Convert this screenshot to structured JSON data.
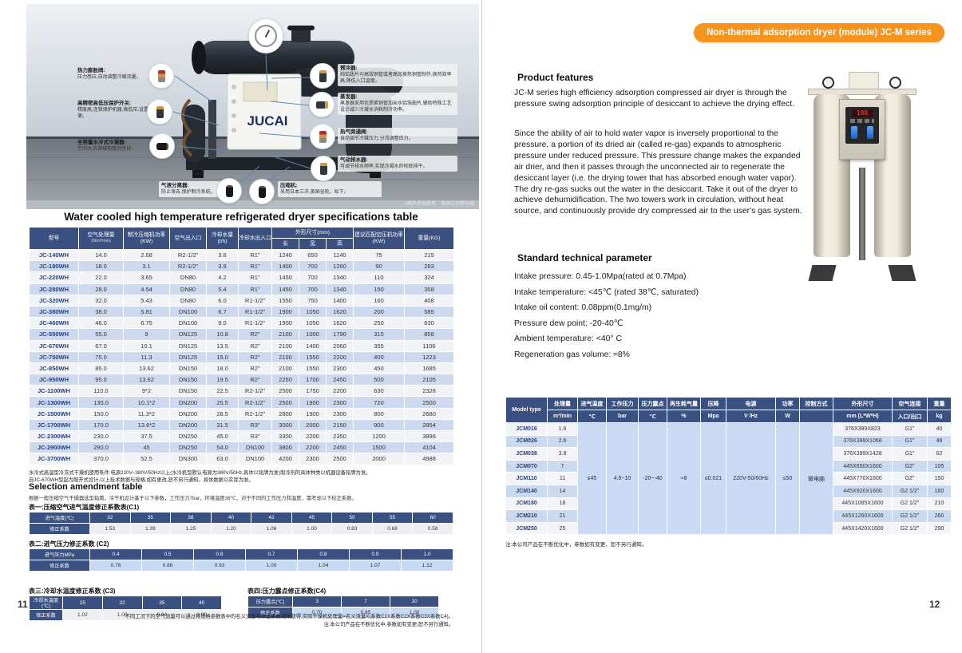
{
  "colors": {
    "accent_orange": "#f7941e",
    "table_header_navy": "#3a5080",
    "row_alt_blue": "#ccd9ee",
    "merged_cell_blue": "#cbdaf2"
  },
  "left_page": {
    "photo": {
      "brand": "JUCAI",
      "caption": "(图片仅供参考，具体以实物为准",
      "callouts_left": [
        {
          "title": "热力膨胀阀:",
          "desc": "压力感应,自动调整冷媒流量。"
        },
        {
          "title": "高精密高低压保护开关:",
          "desc": "精度高,连锁保护机器,高低压,设置方便。"
        },
        {
          "title": "全容量水冷式冷凝器:",
          "desc": "空间大,内部结构散热性好。"
        }
      ],
      "callouts_right": [
        {
          "title": "预冷器:",
          "desc": "纯铝翅片与高效铜管或者高效换热铜管制作,换热效率高,降低入口温度。"
        },
        {
          "title": "蒸发器:",
          "desc": "蒸发器采用优质紫铜管加亲水铝箔翅片,辅助特殊工艺设计减少冷凝水消耗制冷功率。"
        },
        {
          "title": "热气旁通阀:",
          "desc": "自动调节冷媒压力,分流调整压力。"
        },
        {
          "title": "气动排水器:",
          "desc": "可调节排水频率,实现冷凝水的彻底排干。"
        }
      ],
      "callouts_bottom": [
        {
          "title": "气液分离器:",
          "desc": "防止液击,保护制冷系统。"
        },
        {
          "title": "压缩机:",
          "desc": "采用日本三洋,美国谷轮。松下。"
        }
      ]
    },
    "table_title": "Water cooled high temperature refrigerated dryer specifications table",
    "spec_table": {
      "headers": {
        "model": "型号",
        "capacity": "空气处理量",
        "capacity_unit": "(Nm³/min)",
        "comp_power": "制冷压缩机功率(KW)",
        "air_io": "空气出入口",
        "water_flow": "冷却水量(t/h)",
        "water_io": "冷却水出入口",
        "dims": "外形尺寸(mm)",
        "len": "长",
        "wid": "宽",
        "hgt": "高",
        "rec_power": "建议匹配空压机功率(KW)",
        "weight": "重量(KG)"
      },
      "rows": [
        [
          "JC-140WH",
          "14.0",
          "2.68",
          "R2-1/2\"",
          "3.6",
          "R1\"",
          "1240",
          "650",
          "1140",
          "75",
          "215"
        ],
        [
          "JC-180WH",
          "18.0",
          "3.1",
          "R2-1/2\"",
          "3.9",
          "R1\"",
          "1400",
          "700",
          "1260",
          "90",
          "283"
        ],
        [
          "JC-220WH",
          "22.0",
          "3.65",
          "DN80",
          "4.2",
          "R1\"",
          "1450",
          "700",
          "1340",
          "110",
          "324"
        ],
        [
          "JC-280WH",
          "28.0",
          "4.54",
          "DN80",
          "5.4",
          "R1\"",
          "1450",
          "700",
          "1340",
          "150",
          "358"
        ],
        [
          "JC-320WH",
          "32.0",
          "5.43",
          "DN80",
          "6.0",
          "R1-1/2\"",
          "1550",
          "750",
          "1400",
          "160",
          "408"
        ],
        [
          "JC-380WH",
          "38.0",
          "5.81",
          "DN100",
          "6.7",
          "R1-1/2\"",
          "1900",
          "1050",
          "1620",
          "200",
          "585"
        ],
        [
          "JC-460WH",
          "46.0",
          "6.75",
          "DN100",
          "9.0",
          "R1-1/2\"",
          "1900",
          "1050",
          "1620",
          "250",
          "630"
        ],
        [
          "JC-550WH",
          "55.0",
          "9",
          "DN125",
          "10.8",
          "R2\"",
          "2100",
          "1000",
          "1790",
          "315",
          "858"
        ],
        [
          "JC-670WH",
          "67.0",
          "10.1",
          "DN125",
          "13.5",
          "R2\"",
          "2100",
          "1400",
          "2060",
          "355",
          "1106"
        ],
        [
          "JC-750WH",
          "75.0",
          "11.3",
          "DN125",
          "15.0",
          "R2\"",
          "2100",
          "1550",
          "2200",
          "400",
          "1223"
        ],
        [
          "JC-850WH",
          "85.0",
          "13.62",
          "DN150",
          "18.0",
          "R2\"",
          "2100",
          "1550",
          "2300",
          "450",
          "1685"
        ],
        [
          "JC-950WH",
          "95.0",
          "13.62",
          "DN150",
          "19.5",
          "R2\"",
          "2250",
          "1700",
          "2450",
          "500",
          "2105"
        ],
        [
          "JC-1100WH",
          "110.0",
          "9*2",
          "DN150",
          "22.5",
          "R2-1/2\"",
          "2500",
          "1750",
          "2200",
          "630",
          "2326"
        ],
        [
          "JC-1300WH",
          "130.0",
          "10.1*2",
          "DN200",
          "25.5",
          "R2-1/2\"",
          "2500",
          "1900",
          "2300",
          "720",
          "2500"
        ],
        [
          "JC-1500WH",
          "150.0",
          "11.3*2",
          "DN200",
          "28.5",
          "R2-1/2\"",
          "2800",
          "1900",
          "2300",
          "800",
          "2680"
        ],
        [
          "JC-1700WH",
          "170.0",
          "13.6*2",
          "DN200",
          "31.5",
          "R3\"",
          "3000",
          "2000",
          "2150",
          "900",
          "2854"
        ],
        [
          "JC-2300WH",
          "230.0",
          "37.5",
          "DN250",
          "45.0",
          "R3\"",
          "3300",
          "2200",
          "2350",
          "1200",
          "3896"
        ],
        [
          "JC-2900WH",
          "290.0",
          "45",
          "DN250",
          "54.0",
          "DN100",
          "3800",
          "2200",
          "2450",
          "1500",
          "4104"
        ],
        [
          "JC-3700WH",
          "370.0",
          "52.5",
          "DN300",
          "63.0",
          "DN100",
          "4200",
          "2300",
          "2500",
          "2000",
          "4988"
        ]
      ]
    },
    "notes": [
      "水冷式高温型冷冻式干燥机使用条件:电源220V~380V/50Hz以上(水冷机型默认电源为380V/50Hz,具体以铭牌为准)制冷剂的具体种类以机器设备铭牌为准。",
      "自JC-670WH型起为敞开式设计,以上技术数据与规格,如有更改,恕不另行通知。具体数据以实际为准。"
    ],
    "amendment": {
      "heading": "Selection amendment table",
      "intro": "根据一般压缩空气干燥器选型指南，冷干机设计基于以下参数，工作压力7bar，环境温度38℃，对于不同的工作压力和温度，需考虑以下校正系数。",
      "c1": {
        "label": "表一:压缩空气进气温度修正系数表(C1)",
        "row1_label": "进气温度(℃)",
        "row2_label": "修正系数",
        "values": [
          "32",
          "35",
          "38",
          "40",
          "42",
          "45",
          "50",
          "55",
          "60"
        ],
        "coeffs": [
          "1.53",
          "1.39",
          "1.25",
          "1.20",
          "1.06",
          "1.00",
          "0.83",
          "0.68",
          "0.58"
        ]
      },
      "c2": {
        "label": "表二:进气压力修正系数 (C2)",
        "row1_label": "进气压力MPa",
        "row2_label": "修正系数",
        "values": [
          "0.4",
          "0.5",
          "0.6",
          "0.7",
          "0.8",
          "0.9",
          "1.0"
        ],
        "coeffs": [
          "0.76",
          "0.86",
          "0.93",
          "1.00",
          "1.04",
          "1.07",
          "1.12"
        ]
      },
      "c3": {
        "label": "表三:冷却水温度修正系数 (C3)",
        "row1_label": "冷却水温度(℃)",
        "row2_label": "修正系数",
        "values": [
          "25",
          "32",
          "35",
          "40"
        ],
        "coeffs": [
          "1.02",
          "1.00",
          "0.94",
          "0.90"
        ]
      },
      "c4": {
        "label": "表四:压力露点修正系数(C4)",
        "row1_label": "压力露点(℃)",
        "row2_label": "修正系数",
        "values": [
          "3",
          "7",
          "10"
        ],
        "coeffs": [
          "0.70",
          "0.85",
          "1.00"
        ]
      }
    },
    "bottom_notes": [
      "不同工况下的空气流量可以通过将规格参数表中的名义流量与修正系数相乘获得,实际干燥机处理量=名义流量X(系数C1X系数C2X系数C3X系数C4)。",
      "注:本公司产品在不断优化中,参数如有变更,恕不另行通知。"
    ],
    "page_number": "11"
  },
  "right_page": {
    "banner": "Non-thermal adsorption dryer (module) JC-M series",
    "features": {
      "heading": "Product features",
      "p1": "JC-M series high efficiency adsorption compressed air dryer is through the pressure swing adsorption principle of desiccant to achieve the drying effect.",
      "p2": "Since the ability of air to hold water vapor is inversely proportional to the pressure, a portion of its dried air (called re-gas) expands to atmospheric pressure under reduced pressure. This pressure change makes the expanded air drier, and then it passes through the unconnected air to regenerate the desiccant layer (i.e. the drying tower that has absorbed enough water vapor). The dry re-gas sucks out the water in the desiccant. Take it out of the dryer to achieve dehumidification. The two towers work in circulation, without heat source, and continuously provide dry compressed air to the user's gas system."
    },
    "params": {
      "heading": "Standard technical parameter",
      "items": [
        "Intake pressure: 0.45-1.0Mpa(rated at 0.7Mpa)",
        "Intake temperature: <45℃ (rated 38℃, saturated)",
        "Intake oil content: 0.08ppm(0.1mg/m)",
        "Pressure dew point: -20-40℃",
        "Ambient temperature: <40°  C",
        "Regeneration gas volume: ≈8%"
      ]
    },
    "jcm_table": {
      "headers_row1": [
        "Model type",
        "处理量",
        "进气温度",
        "工作压力",
        "压力露点",
        "再生耗气量",
        "压降",
        "电源",
        "功率",
        "控制方式",
        "外形尺寸",
        "空气连接",
        "重量"
      ],
      "headers_row2": [
        "m³/min",
        "℃",
        "bar",
        "℃",
        "%",
        "Mpa",
        "V /Hz",
        "W",
        "",
        "mm (L*W*H)",
        "入口/出口",
        "kg"
      ],
      "merged": [
        "≤45",
        "4.5~10",
        "-20~-40",
        "≈8",
        "≤0.021",
        "220V-50/60Hz",
        "≤50",
        "微电脑"
      ],
      "rows": [
        [
          "JCM016",
          "1.6",
          "376X399X823",
          "G1\"",
          "40"
        ],
        [
          "JCM026",
          "2.6",
          "376X399X1068",
          "G1\"",
          "48"
        ],
        [
          "JCM038",
          "3.8",
          "376X399X1428",
          "G1\"",
          "62"
        ],
        [
          "JCM070",
          "7",
          "445X650X1600",
          "G2\"",
          "105"
        ],
        [
          "JCM110",
          "11",
          "445X770X1600",
          "G2\"",
          "150"
        ],
        [
          "JCM140",
          "14",
          "445X920X1600",
          "G2 1/2\"",
          "180"
        ],
        [
          "JCM180",
          "18",
          "445X1085X1600",
          "G2 1/2\"",
          "210"
        ],
        [
          "JCM210",
          "21",
          "445X1260X1600",
          "G2 1/2\"",
          "260"
        ],
        [
          "JCM250",
          "25",
          "445X1420X1600",
          "G2 1/2\"",
          "290"
        ]
      ]
    },
    "note": "注:本公司产品在不断优化中，参数如有变更，恕不另行通知。",
    "page_number": "12"
  }
}
